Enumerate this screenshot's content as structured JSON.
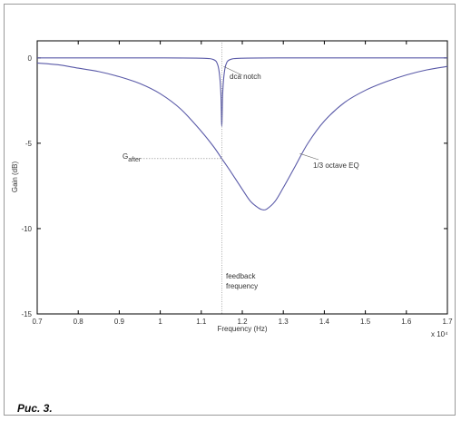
{
  "caption": "Рис. 3.",
  "chart_data": {
    "type": "line",
    "title": "",
    "xlabel": "Frequency (Hz)",
    "ylabel": "Gain (dB)",
    "x_scale_note": "x 10⁴",
    "xlim": [
      0.7,
      1.7
    ],
    "ylim": [
      -15,
      1
    ],
    "xticks": [
      "0.7",
      "0.8",
      "0.9",
      "1",
      "1.1",
      "1.2",
      "1.3",
      "1.4",
      "1.5",
      "1.6",
      "1.7"
    ],
    "xtick_values": [
      0.7,
      0.8,
      0.9,
      1.0,
      1.1,
      1.2,
      1.3,
      1.4,
      1.5,
      1.6,
      1.7
    ],
    "yticks": [
      "0",
      "-5",
      "-10",
      "-15"
    ],
    "ytick_values": [
      0,
      -5,
      -10,
      -15
    ],
    "grid": false,
    "series": [
      {
        "name": "dca notch",
        "color": "#5a5aa8",
        "x": [
          0.7,
          1.0,
          1.1,
          1.13,
          1.14,
          1.145,
          1.148,
          1.15,
          1.152,
          1.155,
          1.16,
          1.17,
          1.2,
          1.3,
          1.5,
          1.7
        ],
        "y": [
          0,
          0,
          -0.02,
          -0.1,
          -0.4,
          -1.1,
          -2.2,
          -4.0,
          -2.2,
          -1.1,
          -0.4,
          -0.1,
          -0.02,
          0,
          0,
          0
        ]
      },
      {
        "name": "1/3 octave EQ",
        "color": "#5a5aa8",
        "x": [
          0.7,
          0.75,
          0.8,
          0.85,
          0.9,
          0.95,
          1.0,
          1.05,
          1.1,
          1.13,
          1.15,
          1.17,
          1.2,
          1.22,
          1.24,
          1.25,
          1.26,
          1.28,
          1.3,
          1.33,
          1.36,
          1.4,
          1.45,
          1.5,
          1.55,
          1.6,
          1.65,
          1.7
        ],
        "y": [
          -0.3,
          -0.4,
          -0.6,
          -0.8,
          -1.1,
          -1.5,
          -2.1,
          -3.0,
          -4.3,
          -5.2,
          -5.9,
          -6.6,
          -7.7,
          -8.4,
          -8.8,
          -8.9,
          -8.85,
          -8.4,
          -7.6,
          -6.3,
          -5.0,
          -3.7,
          -2.6,
          -1.9,
          -1.4,
          -1.0,
          -0.7,
          -0.5
        ]
      }
    ],
    "annotations": {
      "dca_notch_label": "dca notch",
      "eq_label": "1/3 octave EQ",
      "g_after_label": "G",
      "g_after_sub": "after",
      "feedback_label_line1": "feedback",
      "feedback_label_line2": "frequency",
      "g_after_value": -5.9,
      "feedback_x": 1.15
    }
  }
}
